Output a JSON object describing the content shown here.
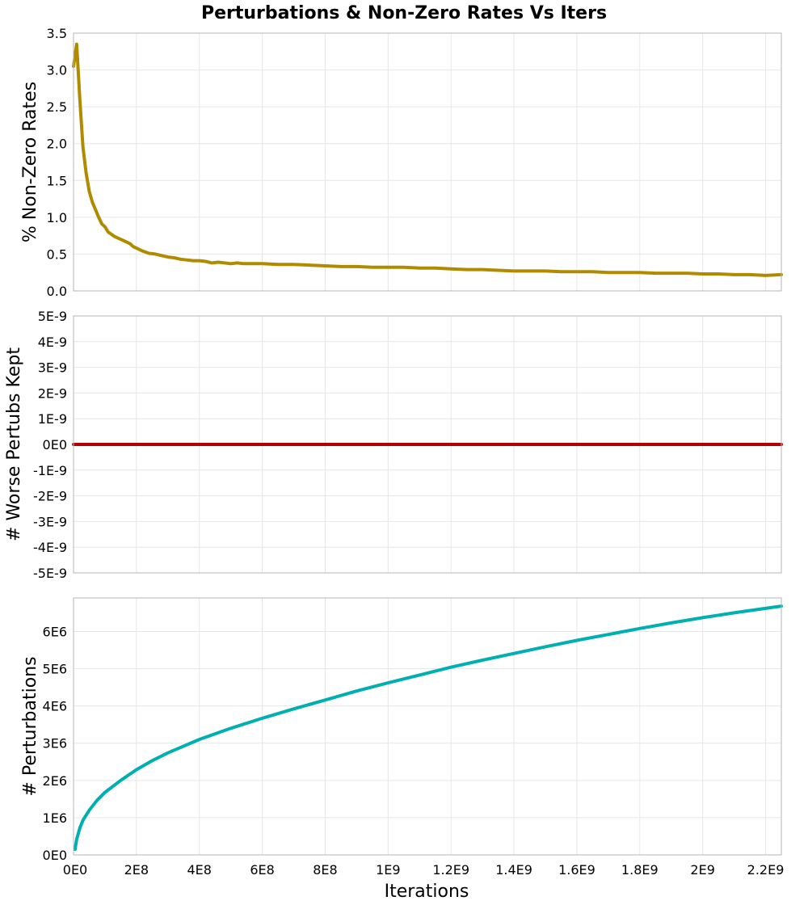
{
  "chart_data": {
    "type": "line",
    "title": "Perturbations & Non-Zero Rates Vs Iters",
    "xlabel": "Iterations",
    "xlim": [
      0,
      2250000000
    ],
    "xticks": [
      {
        "value": 0,
        "label": "0E0"
      },
      {
        "value": 200000000,
        "label": "2E8"
      },
      {
        "value": 400000000,
        "label": "4E8"
      },
      {
        "value": 600000000,
        "label": "6E8"
      },
      {
        "value": 800000000,
        "label": "8E8"
      },
      {
        "value": 1000000000,
        "label": "1E9"
      },
      {
        "value": 1200000000,
        "label": "1.2E9"
      },
      {
        "value": 1400000000,
        "label": "1.4E9"
      },
      {
        "value": 1600000000,
        "label": "1.6E9"
      },
      {
        "value": 1800000000,
        "label": "1.8E9"
      },
      {
        "value": 2000000000,
        "label": "2E9"
      },
      {
        "value": 2200000000,
        "label": "2.2E9"
      }
    ],
    "subplots": [
      {
        "id": "nonzero",
        "ylabel": "% Non-Zero Rates",
        "ylim": [
          0,
          3.5
        ],
        "color": "#B08B00",
        "yticks": [
          {
            "value": 0,
            "label": "0.0"
          },
          {
            "value": 0.5,
            "label": "0.5"
          },
          {
            "value": 1.0,
            "label": "1.0"
          },
          {
            "value": 1.5,
            "label": "1.5"
          },
          {
            "value": 2.0,
            "label": "2.0"
          },
          {
            "value": 2.5,
            "label": "2.5"
          },
          {
            "value": 3.0,
            "label": "3.0"
          },
          {
            "value": 3.5,
            "label": "3.5"
          }
        ],
        "x": [
          0,
          10000000,
          20000000,
          30000000,
          40000000,
          50000000,
          60000000,
          70000000,
          80000000,
          90000000,
          100000000,
          110000000,
          120000000,
          130000000,
          140000000,
          150000000,
          160000000,
          170000000,
          180000000,
          190000000,
          200000000,
          220000000,
          240000000,
          260000000,
          280000000,
          300000000,
          320000000,
          340000000,
          360000000,
          380000000,
          400000000,
          420000000,
          440000000,
          460000000,
          480000000,
          500000000,
          520000000,
          540000000,
          560000000,
          580000000,
          600000000,
          650000000,
          700000000,
          750000000,
          800000000,
          850000000,
          900000000,
          950000000,
          1000000000,
          1050000000,
          1100000000,
          1150000000,
          1200000000,
          1250000000,
          1300000000,
          1350000000,
          1400000000,
          1450000000,
          1500000000,
          1550000000,
          1600000000,
          1650000000,
          1700000000,
          1750000000,
          1800000000,
          1850000000,
          1900000000,
          1950000000,
          2000000000,
          2050000000,
          2100000000,
          2150000000,
          2200000000,
          2250000000
        ],
        "values": [
          3.05,
          3.35,
          2.6,
          1.95,
          1.6,
          1.35,
          1.2,
          1.1,
          1.0,
          0.91,
          0.87,
          0.8,
          0.77,
          0.74,
          0.72,
          0.7,
          0.68,
          0.66,
          0.64,
          0.6,
          0.58,
          0.54,
          0.51,
          0.5,
          0.48,
          0.46,
          0.45,
          0.43,
          0.42,
          0.41,
          0.41,
          0.4,
          0.38,
          0.39,
          0.38,
          0.37,
          0.38,
          0.37,
          0.37,
          0.37,
          0.37,
          0.36,
          0.36,
          0.35,
          0.34,
          0.33,
          0.33,
          0.32,
          0.32,
          0.32,
          0.31,
          0.31,
          0.3,
          0.29,
          0.29,
          0.28,
          0.27,
          0.27,
          0.27,
          0.26,
          0.26,
          0.26,
          0.25,
          0.25,
          0.25,
          0.24,
          0.24,
          0.24,
          0.23,
          0.23,
          0.22,
          0.22,
          0.21,
          0.22
        ]
      },
      {
        "id": "worse",
        "ylabel": "# Worse Pertubs Kept",
        "ylim": [
          -5e-09,
          5e-09
        ],
        "color": "#B30000",
        "yticks": [
          {
            "value": 5e-09,
            "label": "5E-9"
          },
          {
            "value": 4e-09,
            "label": "4E-9"
          },
          {
            "value": 3e-09,
            "label": "3E-9"
          },
          {
            "value": 2e-09,
            "label": "2E-9"
          },
          {
            "value": 1e-09,
            "label": "1E-9"
          },
          {
            "value": 0,
            "label": "0E0"
          },
          {
            "value": -1e-09,
            "label": "-1E-9"
          },
          {
            "value": -2e-09,
            "label": "-2E-9"
          },
          {
            "value": -3e-09,
            "label": "-3E-9"
          },
          {
            "value": -4e-09,
            "label": "-4E-9"
          },
          {
            "value": -5e-09,
            "label": "-5E-9"
          }
        ],
        "x": [
          0,
          2250000000
        ],
        "values": [
          0,
          0
        ]
      },
      {
        "id": "perturbations",
        "ylabel": "# Perturbations",
        "ylim": [
          0,
          6900000
        ],
        "color": "#00AFAF",
        "yticks": [
          {
            "value": 0,
            "label": "0E0"
          },
          {
            "value": 1000000,
            "label": "1E6"
          },
          {
            "value": 2000000,
            "label": "2E6"
          },
          {
            "value": 3000000,
            "label": "3E6"
          },
          {
            "value": 4000000,
            "label": "4E6"
          },
          {
            "value": 5000000,
            "label": "5E6"
          },
          {
            "value": 6000000,
            "label": "6E6"
          }
        ],
        "x": [
          5000000,
          10000000,
          20000000,
          30000000,
          50000000,
          75000000,
          100000000,
          150000000,
          200000000,
          250000000,
          300000000,
          400000000,
          500000000,
          600000000,
          700000000,
          800000000,
          900000000,
          1000000000,
          1100000000,
          1200000000,
          1300000000,
          1400000000,
          1500000000,
          1600000000,
          1700000000,
          1800000000,
          1900000000,
          2000000000,
          2100000000,
          2200000000,
          2250000000
        ],
        "values": [
          150000,
          420000,
          720000,
          930000,
          1200000,
          1470000,
          1680000,
          2000000,
          2290000,
          2530000,
          2740000,
          3100000,
          3400000,
          3670000,
          3920000,
          4160000,
          4400000,
          4620000,
          4830000,
          5040000,
          5230000,
          5410000,
          5590000,
          5760000,
          5920000,
          6080000,
          6230000,
          6370000,
          6500000,
          6620000,
          6680000
        ]
      }
    ]
  }
}
